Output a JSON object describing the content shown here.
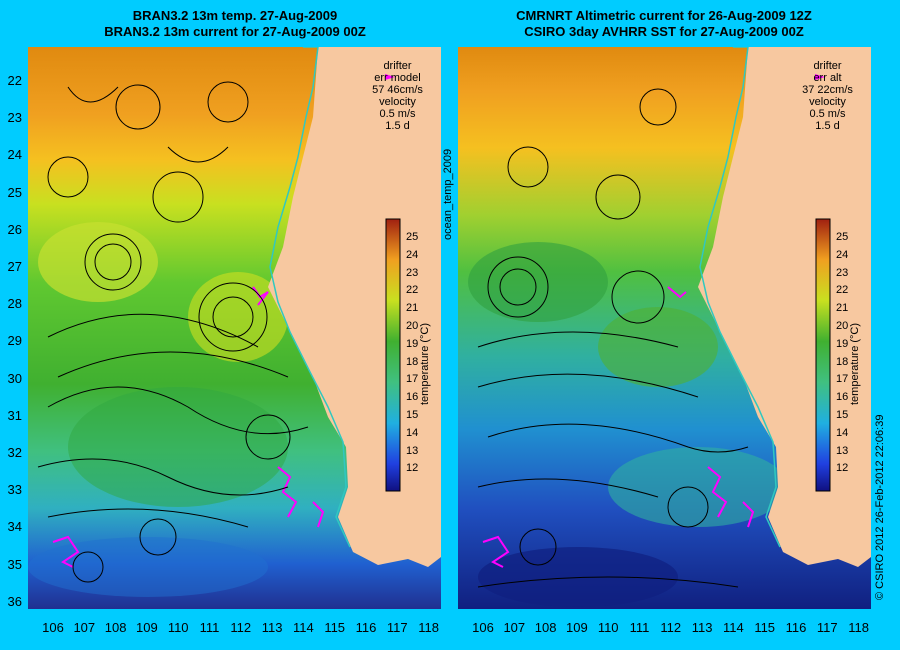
{
  "left_title": {
    "line1": "BRAN3.2 13m temp. 27-Aug-2009",
    "line2": "BRAN3.2 13m current for 27-Aug-2009 00Z"
  },
  "right_title": {
    "line1": "CMRNRT Altimetric current for 26-Aug-2009 12Z",
    "line2": "CSIRO 3day AVHRR SST for 27-Aug-2009 00Z"
  },
  "left_info": {
    "drifter": "drifter",
    "err_label": "err model",
    "err_value": "57 46cm/s",
    "velocity": "velocity",
    "speed": "0.5 m/s",
    "duration": "1.5 d"
  },
  "right_info": {
    "drifter": "drifter",
    "err_label": "err alt",
    "err_value": "37 22cm/s",
    "velocity": "velocity",
    "speed": "0.5 m/s",
    "duration": "1.5 d"
  },
  "side_label": "ocean_temp_2009",
  "colorbar_label": "temperature (°C)",
  "colorbar_ticks": [
    "25",
    "24",
    "23",
    "22",
    "21",
    "20",
    "19",
    "18",
    "17",
    "16",
    "15",
    "14",
    "13",
    "12"
  ],
  "lat_labels": [
    "22",
    "23",
    "24",
    "25",
    "26",
    "27",
    "28",
    "29",
    "30",
    "31",
    "32",
    "33",
    "34",
    "35",
    "36"
  ],
  "lon_labels": [
    "106",
    "107",
    "108",
    "109",
    "110",
    "111",
    "112",
    "113",
    "114",
    "115",
    "116",
    "117",
    "118"
  ],
  "credit": "© CSIRO 2012   26-Feb-2012 22:06:39",
  "colors": {
    "background": "#00ccff",
    "land": "#f7c8a0",
    "drifter": "#ff00ff"
  }
}
